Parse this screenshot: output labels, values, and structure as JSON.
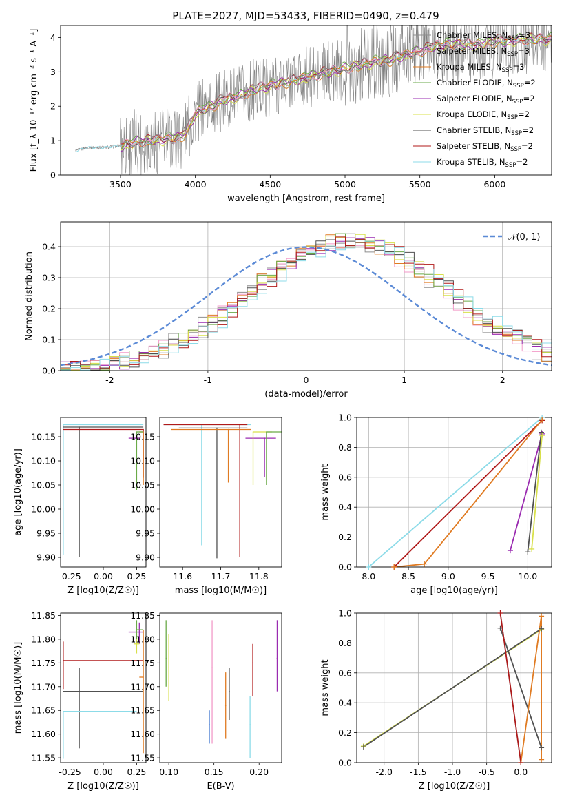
{
  "figure": {
    "title": "PLATE=2027, MJD=53433, FIBERID=0490, z=0.479"
  },
  "colors": {
    "Chabrier MILES": "#8e8e8e",
    "Salpeter MILES": "#f29ac8",
    "Kroupa MILES": "#e07b22",
    "Chabrier ELODIE": "#6aaa48",
    "Salpeter ELODIE": "#9a2bb0",
    "Kroupa ELODIE": "#d8e04a",
    "Chabrier STELIB": "#505050",
    "Salpeter STELIB": "#b01a1a",
    "Kroupa STELIB": "#8cdbe8",
    "gaussian": "#5b8ad6",
    "data": "#808080"
  },
  "chart_data": [
    {
      "id": "spectrum",
      "type": "line",
      "xlabel": "wavelength [Angstrom, rest frame]",
      "ylabel": "Flux [f_λ 10⁻¹⁷ erg cm⁻² s⁻¹ A⁻¹]",
      "xlim": [
        3100,
        6380
      ],
      "ylim": [
        0,
        4.35
      ],
      "xticks": [
        3500,
        4000,
        4500,
        5000,
        5500,
        6000
      ],
      "yticks": [
        0,
        1,
        2,
        3,
        4
      ],
      "legend_position": "right",
      "legend": [
        {
          "label": "Chabrier MILES, N_SSP=3",
          "key": "Chabrier MILES"
        },
        {
          "label": "Salpeter MILES, N_SSP=3",
          "key": "Salpeter MILES"
        },
        {
          "label": "Kroupa MILES, N_SSP=3",
          "key": "Kroupa MILES"
        },
        {
          "label": "Chabrier ELODIE, N_SSP=2",
          "key": "Chabrier ELODIE"
        },
        {
          "label": "Salpeter ELODIE, N_SSP=2",
          "key": "Salpeter ELODIE"
        },
        {
          "label": "Kroupa ELODIE, N_SSP=2",
          "key": "Kroupa ELODIE"
        },
        {
          "label": "Chabrier STELIB, N_SSP=2",
          "key": "Chabrier STELIB"
        },
        {
          "label": "Salpeter STELIB, N_SSP=2",
          "key": "Salpeter STELIB"
        },
        {
          "label": "Kroupa STELIB, N_SSP=2",
          "key": "Kroupa STELIB"
        }
      ],
      "continuum": [
        [
          3200,
          0.7
        ],
        [
          3280,
          0.8
        ],
        [
          3400,
          0.8
        ],
        [
          3500,
          0.85
        ],
        [
          3600,
          0.95
        ],
        [
          3700,
          1.0
        ],
        [
          3800,
          1.05
        ],
        [
          3900,
          1.1
        ],
        [
          3950,
          1.3
        ],
        [
          4000,
          1.8
        ],
        [
          4100,
          2.0
        ],
        [
          4200,
          2.2
        ],
        [
          4300,
          2.3
        ],
        [
          4400,
          2.5
        ],
        [
          4500,
          2.6
        ],
        [
          4600,
          2.7
        ],
        [
          4700,
          2.8
        ],
        [
          4800,
          2.9
        ],
        [
          4900,
          3.0
        ],
        [
          5000,
          3.1
        ],
        [
          5100,
          3.2
        ],
        [
          5200,
          3.3
        ],
        [
          5300,
          3.35
        ],
        [
          5400,
          3.5
        ],
        [
          5500,
          3.6
        ],
        [
          5600,
          3.75
        ],
        [
          5700,
          3.8
        ],
        [
          5800,
          3.8
        ],
        [
          5900,
          3.8
        ],
        [
          6000,
          3.9
        ],
        [
          6100,
          3.9
        ],
        [
          6200,
          3.95
        ]
      ]
    },
    {
      "id": "residuals",
      "type": "line",
      "xlabel": "(data-model)/error",
      "ylabel": "Normed distribution",
      "xlim": [
        -2.5,
        2.5
      ],
      "ylim": [
        0,
        0.48
      ],
      "xticks": [
        -2,
        -1,
        0,
        1,
        2
      ],
      "yticks": [
        0.0,
        0.1,
        0.2,
        0.3,
        0.4
      ],
      "grid": true,
      "legend_position": "top-right",
      "gaussian_label": "𝒩(0, 1)",
      "series_keys": [
        "Chabrier MILES",
        "Salpeter MILES",
        "Kroupa MILES",
        "Chabrier ELODIE",
        "Salpeter ELODIE",
        "Kroupa ELODIE",
        "Chabrier STELIB",
        "Salpeter STELIB",
        "Kroupa STELIB"
      ],
      "histogram_shape": {
        "center": 0.45,
        "sigma": 1.0,
        "peak": 0.42
      }
    },
    {
      "id": "age-vs-Z",
      "type": "scatter",
      "xlabel": "Z [log10(Z/Z☉)]",
      "ylabel": "age  [log10(age/yr)]",
      "xlim": [
        -0.32,
        0.32
      ],
      "ylim": [
        9.88,
        10.19
      ],
      "xticks": [
        -0.25,
        0.0,
        0.25
      ],
      "yticks": [
        9.9,
        9.95,
        10.0,
        10.05,
        10.1,
        10.15
      ],
      "points": [
        {
          "key": "Kroupa STELIB",
          "x": -0.3,
          "y": 10.175,
          "xerr": [
            0,
            0.6
          ],
          "yerr": [
            0.27,
            0
          ]
        },
        {
          "key": "Chabrier STELIB",
          "x": -0.18,
          "y": 10.17,
          "xerr": [
            0.12,
            0.48
          ],
          "yerr": [
            0.27,
            0
          ]
        },
        {
          "key": "Salpeter STELIB",
          "x": 0.3,
          "y": 10.165,
          "xerr": [
            0.6,
            0
          ],
          "yerr": [
            0.1,
            0
          ]
        },
        {
          "key": "Kroupa MILES",
          "x": 0.3,
          "y": 10.16,
          "xerr": [
            0.03,
            0
          ],
          "yerr": [
            0.11,
            0
          ]
        },
        {
          "key": "Salpeter ELODIE",
          "x": 0.27,
          "y": 10.147,
          "xerr": [
            0.08,
            0
          ],
          "yerr": [
            0,
            0
          ]
        },
        {
          "key": "Chabrier ELODIE",
          "x": 0.25,
          "y": 10.16,
          "xerr": [
            0,
            0.05
          ],
          "yerr": [
            0.12,
            0
          ]
        }
      ]
    },
    {
      "id": "age-vs-mass",
      "type": "scatter",
      "xlabel": "mass [log10(M/M☉)]",
      "ylabel": "",
      "xlim": [
        11.54,
        11.86
      ],
      "ylim": [
        9.88,
        10.19
      ],
      "xticks": [
        11.6,
        11.7,
        11.8
      ],
      "yticks": [
        9.9,
        9.95,
        10.0,
        10.05,
        10.1,
        10.15
      ],
      "points": [
        {
          "key": "Kroupa STELIB",
          "x": 11.65,
          "y": 10.175,
          "xerr": [
            0.1,
            0.13
          ],
          "yerr": [
            0.25,
            0
          ]
        },
        {
          "key": "Salpeter STELIB",
          "x": 11.75,
          "y": 10.175,
          "xerr": [
            0.2,
            0.02
          ],
          "yerr": [
            0.275,
            0
          ]
        },
        {
          "key": "Chabrier STELIB",
          "x": 11.69,
          "y": 10.168,
          "xerr": [
            0.1,
            0.08
          ],
          "yerr": [
            0.27,
            0
          ]
        },
        {
          "key": "Kroupa MILES",
          "x": 11.72,
          "y": 10.165,
          "xerr": [
            0.15,
            0.06
          ],
          "yerr": [
            0.11,
            0
          ]
        },
        {
          "key": "Salpeter ELODIE",
          "x": 11.815,
          "y": 10.147,
          "xerr": [
            0.05,
            0.03
          ],
          "yerr": [
            0.08,
            0
          ]
        },
        {
          "key": "Kroupa ELODIE",
          "x": 11.785,
          "y": 10.16,
          "xerr": [
            0,
            0.05
          ],
          "yerr": [
            0.11,
            0
          ]
        },
        {
          "key": "Chabrier ELODIE",
          "x": 11.82,
          "y": 10.16,
          "xerr": [
            0,
            0.04
          ],
          "yerr": [
            0.11,
            0
          ]
        }
      ]
    },
    {
      "id": "weight-vs-age",
      "type": "line",
      "xlabel": "age  [log10(age/yr)]",
      "ylabel": "mass weight",
      "xlim": [
        7.85,
        10.3
      ],
      "ylim": [
        0,
        1.0
      ],
      "xticks": [
        8.0,
        8.5,
        9.0,
        9.5,
        10.0
      ],
      "yticks": [
        0.0,
        0.2,
        0.4,
        0.6,
        0.8,
        1.0
      ],
      "grid": true,
      "series": [
        {
          "key": "Kroupa STELIB",
          "points": [
            [
              8.0,
              0.0
            ],
            [
              10.18,
              1.0
            ]
          ]
        },
        {
          "key": "Salpeter STELIB",
          "points": [
            [
              8.32,
              0.0
            ],
            [
              10.18,
              0.98
            ]
          ]
        },
        {
          "key": "Kroupa MILES",
          "points": [
            [
              8.32,
              0.0
            ],
            [
              8.7,
              0.02
            ],
            [
              10.18,
              0.985
            ]
          ]
        },
        {
          "key": "Salpeter ELODIE",
          "points": [
            [
              9.78,
              0.11
            ],
            [
              10.18,
              0.89
            ]
          ]
        },
        {
          "key": "Chabrier STELIB",
          "points": [
            [
              10.0,
              0.1
            ],
            [
              10.17,
              0.9
            ]
          ]
        },
        {
          "key": "Kroupa ELODIE",
          "points": [
            [
              10.05,
              0.12
            ],
            [
              10.18,
              0.88
            ]
          ]
        }
      ]
    },
    {
      "id": "mass-vs-Z",
      "type": "scatter",
      "xlabel": "Z [log10(Z/Z☉)]",
      "ylabel": "mass [log10(M/M☉)]",
      "xlim": [
        -0.32,
        0.32
      ],
      "ylim": [
        11.54,
        11.855
      ],
      "xticks": [
        -0.25,
        0.0,
        0.25
      ],
      "yticks": [
        11.55,
        11.6,
        11.65,
        11.7,
        11.75,
        11.8,
        11.85
      ],
      "points": [
        {
          "key": "Salpeter STELIB",
          "x": -0.3,
          "y": 11.755,
          "xerr": [
            0,
            0.6
          ],
          "yerr": [
            0.06,
            0.04
          ]
        },
        {
          "key": "Chabrier STELIB",
          "x": -0.18,
          "y": 11.69,
          "xerr": [
            0.12,
            0.48
          ],
          "yerr": [
            0.12,
            0.05
          ]
        },
        {
          "key": "Kroupa STELIB",
          "x": -0.3,
          "y": 11.648,
          "xerr": [
            0,
            0.55
          ],
          "yerr": [
            0.1,
            0.0
          ]
        },
        {
          "key": "Salpeter ELODIE",
          "x": 0.27,
          "y": 11.815,
          "xerr": [
            0.08,
            0.03
          ],
          "yerr": [
            0.025,
            0.02
          ]
        },
        {
          "key": "Kroupa ELODIE",
          "x": 0.25,
          "y": 11.79,
          "xerr": [
            0.02,
            0.02
          ],
          "yerr": [
            0.02,
            0.02
          ]
        },
        {
          "key": "Kroupa MILES",
          "x": 0.3,
          "y": 11.72,
          "xerr": [
            0.03,
            0
          ],
          "yerr": [
            0.16,
            0.1
          ]
        },
        {
          "key": "Chabrier ELODIE",
          "x": 0.25,
          "y": 11.82,
          "xerr": [
            0,
            0.05
          ],
          "yerr": [
            0.02,
            0.02
          ]
        }
      ]
    },
    {
      "id": "mass-vs-EBV",
      "type": "scatter",
      "xlabel": "E(B-V)",
      "ylabel": "",
      "xlim": [
        0.09,
        0.225
      ],
      "ylim": [
        11.54,
        11.855
      ],
      "xticks": [
        0.1,
        0.15,
        0.2
      ],
      "yticks": [
        11.55,
        11.6,
        11.65,
        11.7,
        11.75,
        11.8,
        11.85
      ],
      "points": [
        {
          "key": "Chabrier ELODIE",
          "x": 0.097,
          "y": 11.76,
          "yerr": [
            0.06,
            0.08
          ]
        },
        {
          "key": "Kroupa ELODIE",
          "x": 0.1,
          "y": 11.74,
          "yerr": [
            0.07,
            0.07
          ]
        },
        {
          "key": "gaussian",
          "x": 0.145,
          "y": 11.62,
          "yerr": [
            0.04,
            0.03
          ]
        },
        {
          "key": "Salpeter MILES",
          "x": 0.148,
          "y": 11.74,
          "yerr": [
            0.16,
            0.1
          ]
        },
        {
          "key": "Kroupa MILES",
          "x": 0.163,
          "y": 11.66,
          "yerr": [
            0.07,
            0.07
          ]
        },
        {
          "key": "Chabrier STELIB",
          "x": 0.167,
          "y": 11.69,
          "yerr": [
            0.06,
            0.05
          ]
        },
        {
          "key": "Kroupa STELIB",
          "x": 0.19,
          "y": 11.62,
          "yerr": [
            0.07,
            0.06
          ]
        },
        {
          "key": "Salpeter STELIB",
          "x": 0.193,
          "y": 11.75,
          "yerr": [
            0.07,
            0.04
          ]
        },
        {
          "key": "Salpeter ELODIE",
          "x": 0.22,
          "y": 11.76,
          "yerr": [
            0.07,
            0.08
          ]
        }
      ]
    },
    {
      "id": "weight-vs-Z",
      "type": "line",
      "xlabel": "Z [log10(Z/Z☉)]",
      "ylabel": "mass weight",
      "xlim": [
        -2.4,
        0.45
      ],
      "ylim": [
        0,
        1.0
      ],
      "xticks": [
        -2.0,
        -1.5,
        -1.0,
        -0.5,
        0.0
      ],
      "yticks": [
        0.0,
        0.2,
        0.4,
        0.6,
        0.8,
        1.0
      ],
      "grid": true,
      "series": [
        {
          "key": "Kroupa ELODIE",
          "points": [
            [
              -2.3,
              0.11
            ],
            [
              0.3,
              0.89
            ]
          ]
        },
        {
          "key": "Chabrier STELIB",
          "points": [
            [
              -2.3,
              0.105
            ],
            [
              0.3,
              0.895
            ]
          ]
        },
        {
          "key": "Chabrier STELIB",
          "points": [
            [
              -0.3,
              0.9
            ],
            [
              0.3,
              0.1
            ]
          ]
        },
        {
          "key": "Kroupa STELIB",
          "points": [
            [
              -0.3,
              1.0
            ],
            [
              0.0,
              0.0
            ]
          ]
        },
        {
          "key": "Kroupa MILES",
          "points": [
            [
              0.0,
              0.0
            ],
            [
              0.3,
              0.98
            ],
            [
              0.3,
              0.02
            ]
          ]
        },
        {
          "key": "Salpeter STELIB",
          "points": [
            [
              -0.3,
              1.0
            ],
            [
              0.0,
              0.0
            ]
          ]
        }
      ]
    }
  ]
}
